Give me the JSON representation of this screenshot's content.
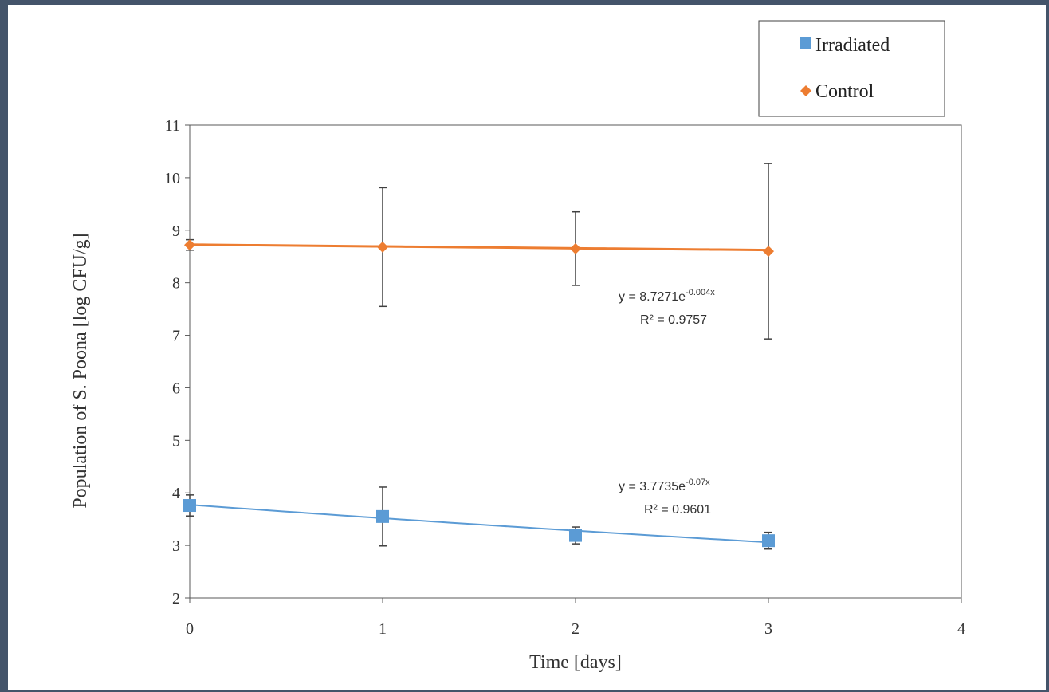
{
  "chart_data": {
    "type": "scatter",
    "title": "",
    "xlabel": "Time [days]",
    "ylabel": "Population of S. Poona [log CFU/g]",
    "xlim": [
      0,
      4
    ],
    "ylim": [
      2,
      11
    ],
    "x_ticks": [
      "0",
      "1",
      "2",
      "3",
      "4"
    ],
    "y_ticks": [
      "2",
      "3",
      "4",
      "5",
      "6",
      "7",
      "8",
      "9",
      "10",
      "11"
    ],
    "grid": false,
    "legend_position": "top-right",
    "series": [
      {
        "name": "Irradiated",
        "marker": "square",
        "color": "#5b9bd5",
        "x": [
          0,
          1,
          2,
          3
        ],
        "y": [
          3.76,
          3.55,
          3.19,
          3.09
        ],
        "error": [
          0.2,
          0.56,
          0.16,
          0.16
        ],
        "trendline": {
          "type": "exponential",
          "a": 3.7735,
          "b": -0.07
        },
        "equation_base": "y = 3.7735e",
        "equation_exp": "-0.07x",
        "r2_label": "R² = 0.9601"
      },
      {
        "name": "Control",
        "marker": "diamond",
        "color": "#ed7d31",
        "x": [
          0,
          1,
          2,
          3
        ],
        "y": [
          8.72,
          8.68,
          8.65,
          8.6
        ],
        "error": [
          0.1,
          1.13,
          0.7,
          1.67
        ],
        "trendline": {
          "type": "exponential",
          "a": 8.7271,
          "b": -0.004
        },
        "equation_base": "y = 8.7271e",
        "equation_exp": "-0.004x",
        "r2_label": "R² = 0.9757"
      }
    ],
    "colors": {
      "frame": "#44546a",
      "axis": "#595959",
      "error_bar": "#404040"
    }
  }
}
